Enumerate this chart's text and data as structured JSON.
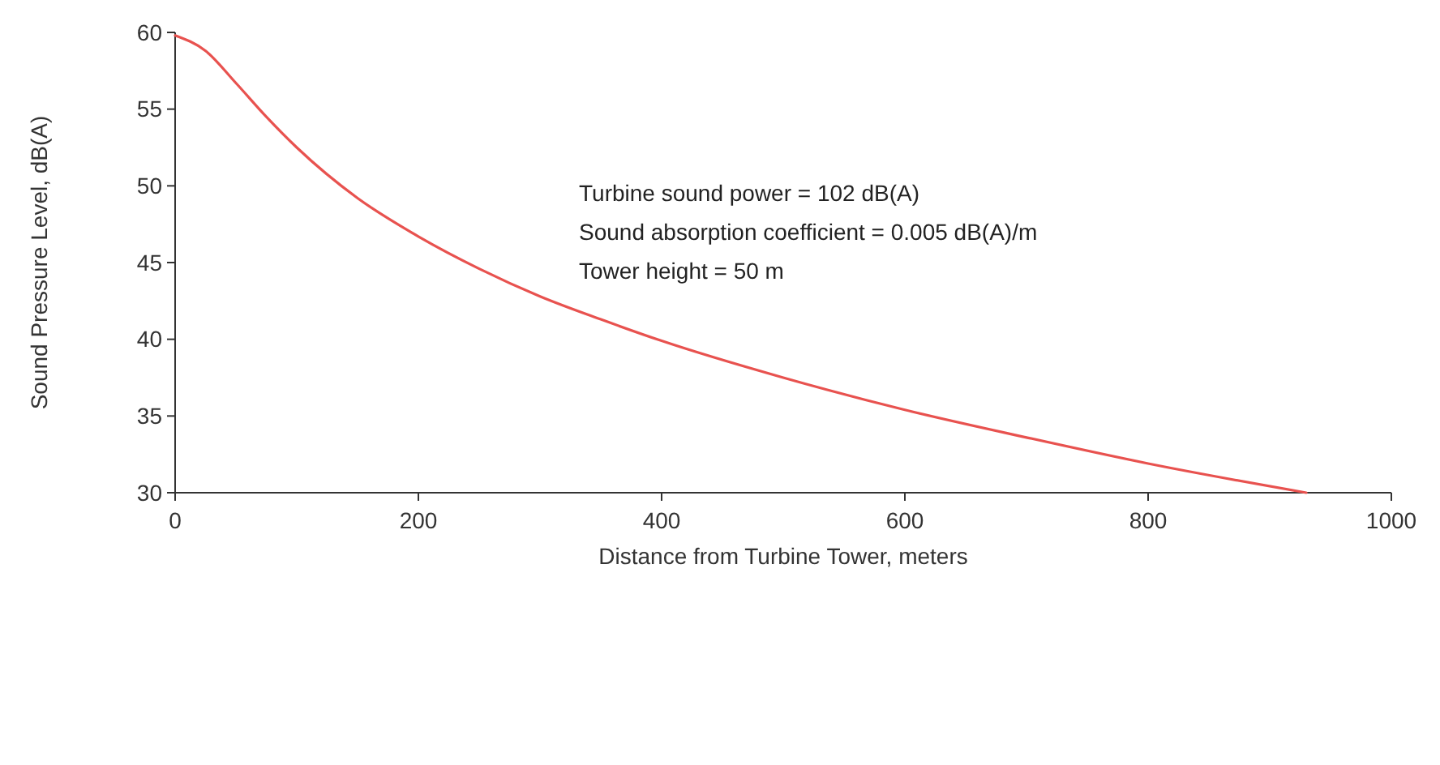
{
  "chart_data": {
    "type": "line",
    "xlabel": "Distance from Turbine Tower, meters",
    "ylabel": "Sound Pressure Level, dB(A)",
    "annotations": [
      "Turbine sound power = 102 dB(A)",
      "Sound absorption coefficient = 0.005 dB(A)/m",
      "Tower height = 50 m"
    ],
    "xlim": [
      0,
      1000
    ],
    "xticks": [
      0,
      200,
      400,
      600,
      800,
      1000
    ],
    "ylim": [
      30,
      60
    ],
    "yticks": [
      30,
      35,
      40,
      45,
      50,
      55,
      60
    ],
    "grid": false,
    "marker": "none",
    "line_style": "solid",
    "series": [
      {
        "color": "#e8524f",
        "x": [
          0,
          25,
          50,
          75,
          100,
          150,
          200,
          250,
          300,
          350,
          400,
          500,
          600,
          700,
          800,
          930
        ],
        "values": [
          59.8,
          58.8,
          56.7,
          54.5,
          52.5,
          49.2,
          46.7,
          44.6,
          42.8,
          41.3,
          39.9,
          37.5,
          35.4,
          33.6,
          31.9,
          30.0
        ]
      }
    ]
  }
}
